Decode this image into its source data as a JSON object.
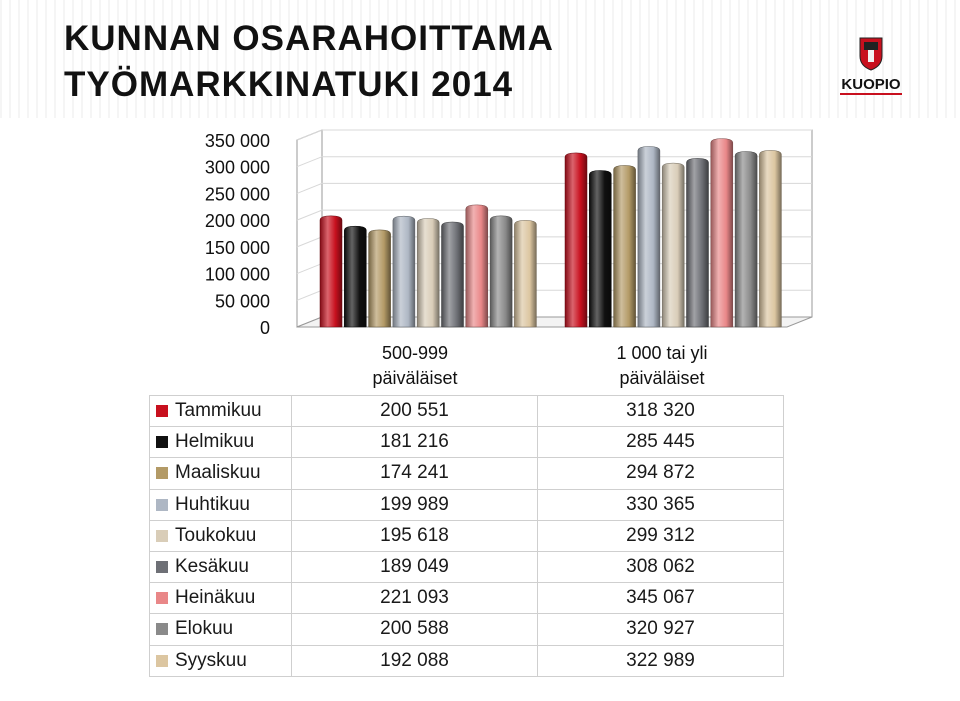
{
  "header": {
    "title_line1": "KUNNAN OSARAHOITTAMA",
    "title_line2": "TYÖMARKKINATUKI 2014",
    "logo_text": "KUOPIO"
  },
  "chart_data": {
    "type": "bar",
    "title": "KUNNAN OSARAHOITTAMA TYÖMARKKINATUKI 2014",
    "categories": [
      "500-999 päiväläiset",
      "1 000 tai yli päiväläiset"
    ],
    "category_lines": [
      [
        "500-999",
        "päiväläiset"
      ],
      [
        "1 000 tai yli",
        "päiväläiset"
      ]
    ],
    "ylim": [
      0,
      350000
    ],
    "yticks": [
      0,
      50000,
      100000,
      150000,
      200000,
      250000,
      300000,
      350000
    ],
    "ytick_labels": [
      "0",
      "50 000",
      "100 000",
      "150 000",
      "200 000",
      "250 000",
      "300 000",
      "350 000"
    ],
    "legend_position": "table-below",
    "series": [
      {
        "name": "Tammikuu",
        "color": "#c8101e",
        "values": [
          200551,
          318320
        ],
        "labels": [
          "200 551",
          "318 320"
        ]
      },
      {
        "name": "Helmikuu",
        "color": "#101010",
        "values": [
          181216,
          285445
        ],
        "labels": [
          "181 216",
          "285 445"
        ]
      },
      {
        "name": "Maaliskuu",
        "color": "#b39a66",
        "values": [
          174241,
          294872
        ],
        "labels": [
          "174 241",
          "294 872"
        ]
      },
      {
        "name": "Huhtikuu",
        "color": "#aeb7c4",
        "values": [
          199989,
          330365
        ],
        "labels": [
          "199 989",
          "330 365"
        ]
      },
      {
        "name": "Toukokuu",
        "color": "#d9cdb8",
        "values": [
          195618,
          299312
        ],
        "labels": [
          "195 618",
          "299 312"
        ]
      },
      {
        "name": "Kesäkuu",
        "color": "#6e7076",
        "values": [
          189049,
          308062
        ],
        "labels": [
          "189 049",
          "308 062"
        ]
      },
      {
        "name": "Heinäkuu",
        "color": "#e98788",
        "values": [
          221093,
          345067
        ],
        "labels": [
          "221 093",
          "345 067"
        ]
      },
      {
        "name": "Elokuu",
        "color": "#8a8a8a",
        "values": [
          200588,
          320927
        ],
        "labels": [
          "200 588",
          "320 927"
        ]
      },
      {
        "name": "Syyskuu",
        "color": "#dcc6a1",
        "values": [
          192088,
          322989
        ],
        "labels": [
          "192 088",
          "322 989"
        ]
      }
    ]
  }
}
